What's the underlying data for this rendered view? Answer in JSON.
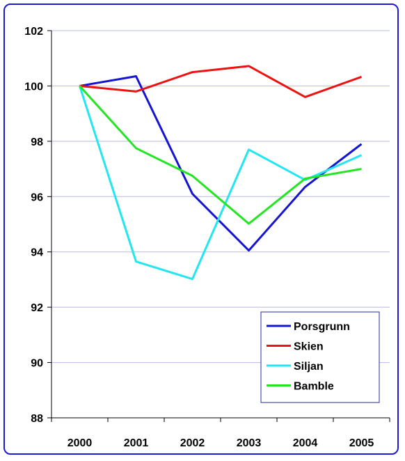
{
  "chart_data": {
    "type": "line",
    "title": "",
    "xlabel": "",
    "ylabel": "",
    "categories": [
      "2000",
      "2001",
      "2002",
      "2003",
      "2004",
      "2005"
    ],
    "ylim": [
      88,
      102
    ],
    "yticks": [
      "88",
      "90",
      "92",
      "94",
      "96",
      "98",
      "100",
      "102"
    ],
    "grid": "horizontal",
    "legend_position": "bottom-right",
    "series": [
      {
        "name": "Porsgrunn",
        "color": "#1414d2",
        "values": [
          100,
          100.35,
          96.1,
          94.05,
          96.35,
          97.9
        ]
      },
      {
        "name": "Skien",
        "color": "#ee1111",
        "values": [
          100,
          99.8,
          100.5,
          100.72,
          99.6,
          100.33
        ]
      },
      {
        "name": "Siljan",
        "color": "#22e6f0",
        "values": [
          100,
          93.65,
          93.02,
          97.7,
          96.6,
          97.5
        ]
      },
      {
        "name": "Bamble",
        "color": "#22e622",
        "values": [
          100,
          97.75,
          96.75,
          95.02,
          96.65,
          97.0
        ]
      }
    ]
  }
}
